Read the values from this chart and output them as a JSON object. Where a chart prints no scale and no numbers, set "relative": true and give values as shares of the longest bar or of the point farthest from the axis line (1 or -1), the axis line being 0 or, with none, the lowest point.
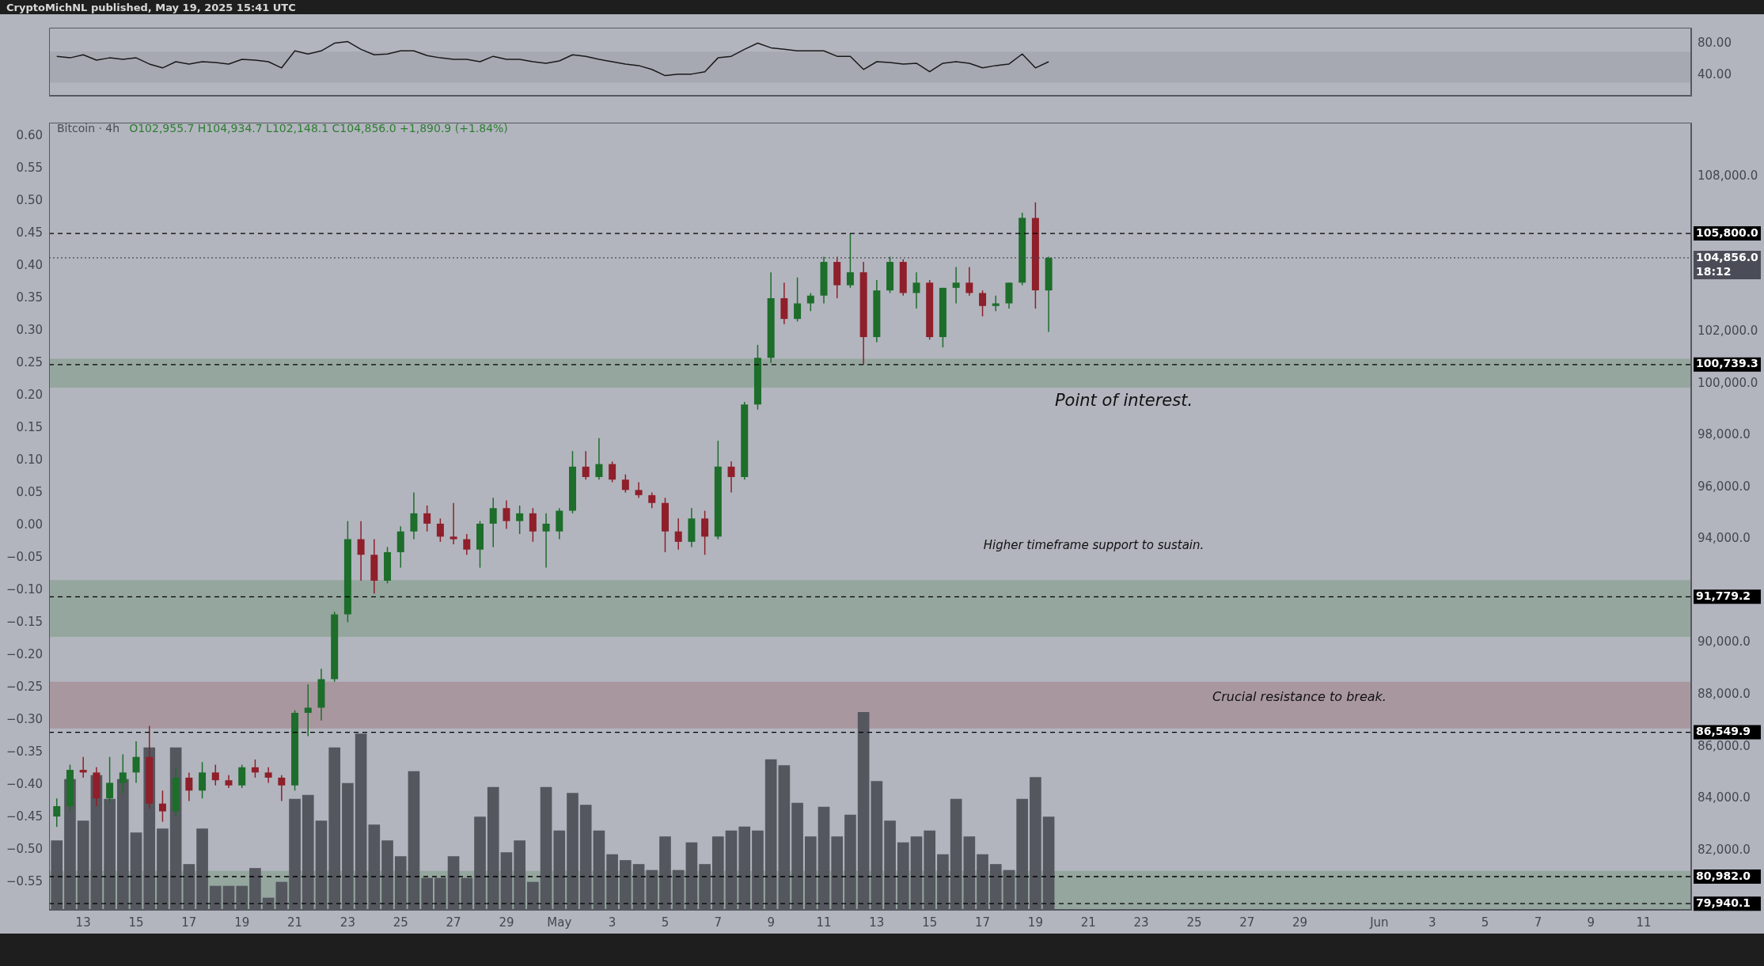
{
  "chart_data": [
    {
      "type": "line",
      "x": [
        "2025-04-12T00:00",
        "2025-04-12T12:00",
        "2025-04-13T00:00",
        "2025-04-13T12:00",
        "2025-04-14T00:00",
        "2025-04-14T12:00",
        "2025-04-15T00:00",
        "2025-04-15T12:00",
        "2025-04-16T00:00",
        "2025-04-16T12:00",
        "2025-04-17T00:00",
        "2025-04-17T12:00",
        "2025-04-18T00:00",
        "2025-04-18T12:00",
        "2025-04-19T00:00",
        "2025-04-19T12:00",
        "2025-04-20T00:00",
        "2025-04-20T12:00",
        "2025-04-21T00:00",
        "2025-04-21T12:00",
        "2025-04-22T00:00",
        "2025-04-22T12:00",
        "2025-04-23T00:00",
        "2025-04-23T12:00",
        "2025-04-24T00:00",
        "2025-04-24T12:00",
        "2025-04-25T00:00",
        "2025-04-25T12:00",
        "2025-04-26T00:00",
        "2025-04-26T12:00",
        "2025-04-27T00:00",
        "2025-04-27T12:00",
        "2025-04-28T00:00",
        "2025-04-28T12:00",
        "2025-04-29T00:00",
        "2025-04-29T12:00",
        "2025-04-30T00:00",
        "2025-04-30T12:00",
        "2025-05-01T00:00",
        "2025-05-01T12:00",
        "2025-05-02T00:00",
        "2025-05-02T12:00",
        "2025-05-03T00:00",
        "2025-05-03T12:00",
        "2025-05-04T00:00",
        "2025-05-04T12:00",
        "2025-05-05T00:00",
        "2025-05-05T12:00",
        "2025-05-06T00:00",
        "2025-05-06T12:00",
        "2025-05-07T00:00",
        "2025-05-07T12:00",
        "2025-05-08T00:00",
        "2025-05-08T12:00",
        "2025-05-09T00:00",
        "2025-05-09T12:00",
        "2025-05-10T00:00",
        "2025-05-10T12:00",
        "2025-05-11T00:00",
        "2025-05-11T12:00",
        "2025-05-12T00:00",
        "2025-05-12T12:00",
        "2025-05-13T00:00",
        "2025-05-13T12:00",
        "2025-05-14T00:00",
        "2025-05-14T12:00",
        "2025-05-15T00:00",
        "2025-05-15T12:00",
        "2025-05-16T00:00",
        "2025-05-16T12:00",
        "2025-05-17T00:00",
        "2025-05-17T12:00",
        "2025-05-18T00:00",
        "2025-05-18T12:00",
        "2025-05-19T00:00",
        "2025-05-19T12:00"
      ],
      "series": [
        {
          "color": "#1a1a1a",
          "values": [
            64,
            62,
            66,
            59,
            62,
            60,
            62,
            54,
            49,
            57,
            54,
            57,
            56,
            54,
            60,
            59,
            57,
            49,
            71,
            67,
            71,
            81,
            83,
            73,
            66,
            67,
            71,
            71,
            65,
            62,
            60,
            60,
            57,
            64,
            60,
            60,
            57,
            55,
            58,
            66,
            64,
            60,
            57,
            54,
            52,
            47,
            39,
            41,
            41,
            44,
            62,
            64,
            73,
            81,
            75,
            73,
            71,
            71,
            71,
            64,
            64,
            47,
            57,
            56,
            54,
            55,
            44,
            55,
            57,
            55,
            49,
            52,
            54,
            67,
            49,
            57
          ]
        }
      ],
      "xlim": [
        "2025-04-11T17:00",
        "2025-06-12T19:00"
      ],
      "ylim": [
        13,
        101
      ],
      "yticks": [
        {
          "value": 40,
          "label": "40.00"
        },
        {
          "value": 80,
          "label": "80.00"
        }
      ],
      "tick_labels": "y",
      "bands": [
        {
          "axis": "y",
          "from": 30,
          "to": 70,
          "color": "#a3a6ae"
        }
      ]
    },
    {
      "type": "candlestick",
      "title": "Bitcoin · 4h",
      "subtitle": "O102,955.7 H104,934.7 L102,148.1 C104,856.0 +1,890.9 (+1.84%)",
      "x": [
        "2025-04-12T00:00",
        "2025-04-12T12:00",
        "2025-04-13T00:00",
        "2025-04-13T12:00",
        "2025-04-14T00:00",
        "2025-04-14T12:00",
        "2025-04-15T00:00",
        "2025-04-15T12:00",
        "2025-04-16T00:00",
        "2025-04-16T12:00",
        "2025-04-17T00:00",
        "2025-04-17T12:00",
        "2025-04-18T00:00",
        "2025-04-18T12:00",
        "2025-04-19T00:00",
        "2025-04-19T12:00",
        "2025-04-20T00:00",
        "2025-04-20T12:00",
        "2025-04-21T00:00",
        "2025-04-21T12:00",
        "2025-04-22T00:00",
        "2025-04-22T12:00",
        "2025-04-23T00:00",
        "2025-04-23T12:00",
        "2025-04-24T00:00",
        "2025-04-24T12:00",
        "2025-04-25T00:00",
        "2025-04-25T12:00",
        "2025-04-26T00:00",
        "2025-04-26T12:00",
        "2025-04-27T00:00",
        "2025-04-27T12:00",
        "2025-04-28T00:00",
        "2025-04-28T12:00",
        "2025-04-29T00:00",
        "2025-04-29T12:00",
        "2025-04-30T00:00",
        "2025-04-30T12:00",
        "2025-05-01T00:00",
        "2025-05-01T12:00",
        "2025-05-02T00:00",
        "2025-05-02T12:00",
        "2025-05-03T00:00",
        "2025-05-03T12:00",
        "2025-05-04T00:00",
        "2025-05-04T12:00",
        "2025-05-05T00:00",
        "2025-05-05T12:00",
        "2025-05-06T00:00",
        "2025-05-06T12:00",
        "2025-05-07T00:00",
        "2025-05-07T12:00",
        "2025-05-08T00:00",
        "2025-05-08T12:00",
        "2025-05-09T00:00",
        "2025-05-09T12:00",
        "2025-05-10T00:00",
        "2025-05-10T12:00",
        "2025-05-11T00:00",
        "2025-05-11T12:00",
        "2025-05-12T00:00",
        "2025-05-12T12:00",
        "2025-05-13T00:00",
        "2025-05-13T12:00",
        "2025-05-14T00:00",
        "2025-05-14T12:00",
        "2025-05-15T00:00",
        "2025-05-15T12:00",
        "2025-05-16T00:00",
        "2025-05-16T12:00",
        "2025-05-17T00:00",
        "2025-05-17T12:00",
        "2025-05-18T00:00",
        "2025-05-18T12:00",
        "2025-05-19T00:00",
        "2025-05-19T12:00"
      ],
      "ohlc": [
        [
          83300,
          84000,
          82900,
          83700
        ],
        [
          83700,
          85300,
          83500,
          85100
        ],
        [
          85100,
          85600,
          84800,
          85000
        ],
        [
          85000,
          85200,
          83700,
          84000
        ],
        [
          84000,
          85600,
          83800,
          84600
        ],
        [
          84600,
          85700,
          84200,
          85000
        ],
        [
          85000,
          86200,
          84600,
          85600
        ],
        [
          85600,
          86800,
          83600,
          83800
        ],
        [
          83800,
          84300,
          83100,
          83500
        ],
        [
          83500,
          85200,
          83300,
          84800
        ],
        [
          84800,
          85000,
          83900,
          84300
        ],
        [
          84300,
          85400,
          84000,
          85000
        ],
        [
          85000,
          85300,
          84500,
          84700
        ],
        [
          84700,
          84900,
          84400,
          84500
        ],
        [
          84500,
          85300,
          84400,
          85200
        ],
        [
          85200,
          85500,
          84800,
          85000
        ],
        [
          85000,
          85200,
          84600,
          84800
        ],
        [
          84800,
          84900,
          83900,
          84500
        ],
        [
          84500,
          87400,
          84300,
          87300
        ],
        [
          87300,
          88400,
          86400,
          87500
        ],
        [
          87500,
          89000,
          87000,
          88600
        ],
        [
          88600,
          91200,
          88500,
          91100
        ],
        [
          91100,
          94700,
          90800,
          94000
        ],
        [
          94000,
          94700,
          92400,
          93400
        ],
        [
          93400,
          94000,
          91900,
          92400
        ],
        [
          92400,
          93700,
          92300,
          93500
        ],
        [
          93500,
          94500,
          92900,
          94300
        ],
        [
          94300,
          95800,
          94000,
          95000
        ],
        [
          95000,
          95300,
          94300,
          94600
        ],
        [
          94600,
          94800,
          93900,
          94100
        ],
        [
          94100,
          95400,
          93800,
          94000
        ],
        [
          94000,
          94200,
          93400,
          93600
        ],
        [
          93600,
          94700,
          92900,
          94600
        ],
        [
          94600,
          95600,
          93700,
          95200
        ],
        [
          95200,
          95500,
          94400,
          94700
        ],
        [
          94700,
          95300,
          94200,
          95000
        ],
        [
          95000,
          95200,
          93900,
          94300
        ],
        [
          94300,
          95000,
          92900,
          94600
        ],
        [
          94300,
          95200,
          94000,
          95100
        ],
        [
          95100,
          97400,
          95000,
          96800
        ],
        [
          96800,
          97400,
          96300,
          96400
        ],
        [
          96400,
          97900,
          96300,
          96900
        ],
        [
          96900,
          97000,
          96200,
          96300
        ],
        [
          96300,
          96500,
          95800,
          95900
        ],
        [
          95900,
          96200,
          95600,
          95700
        ],
        [
          95700,
          95800,
          95200,
          95400
        ],
        [
          95400,
          95600,
          93500,
          94300
        ],
        [
          94300,
          94800,
          93600,
          93900
        ],
        [
          93900,
          95200,
          93700,
          94800
        ],
        [
          94800,
          95100,
          93400,
          94100
        ],
        [
          94100,
          97800,
          94000,
          96800
        ],
        [
          96800,
          97000,
          95800,
          96400
        ],
        [
          96400,
          99300,
          96300,
          99200
        ],
        [
          99200,
          101500,
          99000,
          101000
        ],
        [
          101000,
          104300,
          100800,
          103300
        ],
        [
          103300,
          103900,
          102300,
          102500
        ],
        [
          102500,
          104100,
          102400,
          103100
        ],
        [
          103100,
          103500,
          102800,
          103400
        ],
        [
          103400,
          104900,
          103100,
          104700
        ],
        [
          104700,
          104900,
          103300,
          103800
        ],
        [
          103800,
          105800,
          103700,
          104300
        ],
        [
          104300,
          104700,
          100739.3,
          101800
        ],
        [
          101800,
          104000,
          101600,
          103600
        ],
        [
          103600,
          104900,
          103500,
          104700
        ],
        [
          104700,
          104800,
          103400,
          103500
        ],
        [
          103500,
          104300,
          102900,
          103900
        ],
        [
          103900,
          104000,
          101700,
          101800
        ],
        [
          101800,
          103700,
          101400,
          103700
        ],
        [
          103700,
          104500,
          103100,
          103900
        ],
        [
          103900,
          104500,
          103400,
          103500
        ],
        [
          103500,
          103600,
          102600,
          103000
        ],
        [
          103000,
          103400,
          102800,
          103100
        ],
        [
          103100,
          103900,
          102900,
          103900
        ],
        [
          103900,
          106600,
          103800,
          106400
        ],
        [
          106400,
          107000,
          102900,
          103600
        ],
        [
          103600,
          104900,
          102000,
          104856
        ]
      ],
      "colors": [
        "#1d6d2b",
        "#1d6d2b",
        "#8f1f2a",
        "#8f1f2a",
        "#1d6d2b",
        "#1d6d2b",
        "#1d6d2b",
        "#8f1f2a",
        "#8f1f2a",
        "#1d6d2b",
        "#8f1f2a",
        "#1d6d2b",
        "#8f1f2a",
        "#8f1f2a",
        "#1d6d2b",
        "#8f1f2a",
        "#8f1f2a",
        "#8f1f2a",
        "#1d6d2b",
        "#1d6d2b",
        "#1d6d2b",
        "#1d6d2b",
        "#1d6d2b",
        "#8f1f2a",
        "#8f1f2a",
        "#1d6d2b",
        "#1d6d2b",
        "#1d6d2b",
        "#8f1f2a",
        "#8f1f2a",
        "#8f1f2a",
        "#8f1f2a",
        "#1d6d2b",
        "#1d6d2b",
        "#8f1f2a",
        "#1d6d2b",
        "#8f1f2a",
        "#1d6d2b",
        "#1d6d2b",
        "#1d6d2b",
        "#8f1f2a",
        "#1d6d2b",
        "#8f1f2a",
        "#8f1f2a",
        "#8f1f2a",
        "#8f1f2a",
        "#8f1f2a",
        "#8f1f2a",
        "#1d6d2b",
        "#8f1f2a",
        "#1d6d2b",
        "#8f1f2a",
        "#1d6d2b",
        "#1d6d2b",
        "#1d6d2b",
        "#8f1f2a",
        "#1d6d2b",
        "#1d6d2b",
        "#1d6d2b",
        "#8f1f2a",
        "#1d6d2b",
        "#8f1f2a",
        "#1d6d2b",
        "#1d6d2b",
        "#8f1f2a",
        "#1d6d2b",
        "#8f1f2a",
        "#1d6d2b",
        "#1d6d2b",
        "#8f1f2a",
        "#8f1f2a",
        "#1d6d2b",
        "#1d6d2b",
        "#1d6d2b",
        "#8f1f2a",
        "#1d6d2b"
      ],
      "xlim": [
        "2025-04-11T17:00",
        "2025-06-12T19:00"
      ],
      "xticks": [
        {
          "value": "2025-04-13",
          "label": "13"
        },
        {
          "value": "2025-04-15",
          "label": "15"
        },
        {
          "value": "2025-04-17",
          "label": "17"
        },
        {
          "value": "2025-04-19",
          "label": "19"
        },
        {
          "value": "2025-04-21",
          "label": "21"
        },
        {
          "value": "2025-04-23",
          "label": "23"
        },
        {
          "value": "2025-04-25",
          "label": "25"
        },
        {
          "value": "2025-04-27",
          "label": "27"
        },
        {
          "value": "2025-04-29",
          "label": "29"
        },
        {
          "value": "2025-05-01",
          "label": "May"
        },
        {
          "value": "2025-05-03",
          "label": "3"
        },
        {
          "value": "2025-05-05",
          "label": "5"
        },
        {
          "value": "2025-05-07",
          "label": "7"
        },
        {
          "value": "2025-05-09",
          "label": "9"
        },
        {
          "value": "2025-05-11",
          "label": "11"
        },
        {
          "value": "2025-05-13",
          "label": "13"
        },
        {
          "value": "2025-05-15",
          "label": "15"
        },
        {
          "value": "2025-05-17",
          "label": "17"
        },
        {
          "value": "2025-05-19",
          "label": "19"
        },
        {
          "value": "2025-05-21",
          "label": "21"
        },
        {
          "value": "2025-05-23",
          "label": "23"
        },
        {
          "value": "2025-05-25",
          "label": "25"
        },
        {
          "value": "2025-05-27",
          "label": "27"
        },
        {
          "value": "2025-05-29",
          "label": "29"
        },
        {
          "value": "2025-06-01",
          "label": "Jun"
        },
        {
          "value": "2025-06-03",
          "label": "3"
        },
        {
          "value": "2025-06-05",
          "label": "5"
        },
        {
          "value": "2025-06-07",
          "label": "7"
        },
        {
          "value": "2025-06-09",
          "label": "9"
        },
        {
          "value": "2025-06-11",
          "label": "11"
        }
      ],
      "ylim": [
        79700,
        110075
      ],
      "yticks": [
        {
          "value": 82000,
          "label": "82,000.0"
        },
        {
          "value": 84000,
          "label": "84,000.0"
        },
        {
          "value": 86000,
          "label": "86,000.0"
        },
        {
          "value": 88000,
          "label": "88,000.0"
        },
        {
          "value": 90000,
          "label": "90,000.0"
        },
        {
          "value": 94000,
          "label": "94,000.0"
        },
        {
          "value": 96000,
          "label": "96,000.0"
        },
        {
          "value": 98000,
          "label": "98,000.0"
        },
        {
          "value": 100000,
          "label": "100,000.0"
        },
        {
          "value": 102000,
          "label": "102,000.0"
        },
        {
          "value": 108000,
          "label": "108,000.0"
        }
      ],
      "y2lim": [
        -0.593,
        0.621
      ],
      "y2ticks": [
        {
          "value": -0.55,
          "label": "−0.55"
        },
        {
          "value": -0.5,
          "label": "−0.50"
        },
        {
          "value": -0.45,
          "label": "−0.45"
        },
        {
          "value": -0.4,
          "label": "−0.40"
        },
        {
          "value": -0.35,
          "label": "−0.35"
        },
        {
          "value": -0.3,
          "label": "−0.30"
        },
        {
          "value": -0.25,
          "label": "−0.25"
        },
        {
          "value": -0.2,
          "label": "−0.20"
        },
        {
          "value": -0.15,
          "label": "−0.15"
        },
        {
          "value": -0.1,
          "label": "−0.10"
        },
        {
          "value": -0.05,
          "label": "−0.05"
        },
        {
          "value": 0,
          "label": "0.00"
        },
        {
          "value": 0.05,
          "label": "0.05"
        },
        {
          "value": 0.1,
          "label": "0.10"
        },
        {
          "value": 0.15,
          "label": "0.15"
        },
        {
          "value": 0.2,
          "label": "0.20"
        },
        {
          "value": 0.25,
          "label": "0.25"
        },
        {
          "value": 0.3,
          "label": "0.30"
        },
        {
          "value": 0.35,
          "label": "0.35"
        },
        {
          "value": 0.4,
          "label": "0.40"
        },
        {
          "value": 0.45,
          "label": "0.45"
        },
        {
          "value": 0.5,
          "label": "0.50"
        },
        {
          "value": 0.55,
          "label": "0.55"
        },
        {
          "value": 0.6,
          "label": "0.60"
        }
      ],
      "bands": [
        {
          "axis": "y",
          "from": 86700,
          "to": 88500,
          "color": "#a68d96"
        },
        {
          "axis": "y",
          "from": 90230,
          "to": 92420,
          "color": "#8ba293"
        },
        {
          "axis": "y",
          "from": 99850,
          "to": 100960,
          "color": "#8ba293"
        },
        {
          "axis": "y",
          "from": 79700,
          "to": 81200,
          "color": "#8ba293"
        }
      ],
      "ref_lines": [
        {
          "axis": "y",
          "value": 105800,
          "label": "105,800.0",
          "color": "#000000",
          "line_style": "dashed"
        },
        {
          "axis": "y",
          "value": 104856,
          "label": "104,856.0\n18:12",
          "color": "#4a4d57",
          "line_style": "dotted"
        },
        {
          "axis": "y",
          "value": 100739.3,
          "label": "100,739.3",
          "color": "#000000",
          "line_style": "dashed"
        },
        {
          "axis": "y",
          "value": 91779.2,
          "label": "91,779.2",
          "color": "#000000",
          "line_style": "dashed"
        },
        {
          "axis": "y",
          "value": 86549.9,
          "label": "86,549.9",
          "color": "#000000",
          "line_style": "dashed"
        },
        {
          "axis": "y",
          "value": 80982.0,
          "label": "80,982.0",
          "color": "#000000",
          "line_style": "dashed"
        },
        {
          "axis": "y",
          "value": 79940.1,
          "label": "79,940.1",
          "color": "#000000",
          "line_style": "dashed"
        }
      ],
      "annotations": [
        "CryptoMichNL published, May 19, 2025 15:41 UTC",
        "Point of interest.",
        "Higher timeframe support to sustain.",
        "Crucial resistance to break."
      ]
    },
    {
      "type": "bar",
      "relative": true,
      "color": "#55575e",
      "tick_labels": false,
      "x": [
        "2025-04-12T00:00",
        "2025-04-12T12:00",
        "2025-04-13T00:00",
        "2025-04-13T12:00",
        "2025-04-14T00:00",
        "2025-04-14T12:00",
        "2025-04-15T00:00",
        "2025-04-15T12:00",
        "2025-04-16T00:00",
        "2025-04-16T12:00",
        "2025-04-17T00:00",
        "2025-04-17T12:00",
        "2025-04-18T00:00",
        "2025-04-18T12:00",
        "2025-04-19T00:00",
        "2025-04-19T12:00",
        "2025-04-20T00:00",
        "2025-04-20T12:00",
        "2025-04-21T00:00",
        "2025-04-21T12:00",
        "2025-04-22T00:00",
        "2025-04-22T12:00",
        "2025-04-23T00:00",
        "2025-04-23T12:00",
        "2025-04-24T00:00",
        "2025-04-24T12:00",
        "2025-04-25T00:00",
        "2025-04-25T12:00",
        "2025-04-26T00:00",
        "2025-04-26T12:00",
        "2025-04-27T00:00",
        "2025-04-27T12:00",
        "2025-04-28T00:00",
        "2025-04-28T12:00",
        "2025-04-29T00:00",
        "2025-04-29T12:00",
        "2025-04-30T00:00",
        "2025-04-30T12:00",
        "2025-05-01T00:00",
        "2025-05-01T12:00",
        "2025-05-02T00:00",
        "2025-05-02T12:00",
        "2025-05-03T00:00",
        "2025-05-03T12:00",
        "2025-05-04T00:00",
        "2025-05-04T12:00",
        "2025-05-05T00:00",
        "2025-05-05T12:00",
        "2025-05-06T00:00",
        "2025-05-06T12:00",
        "2025-05-07T00:00",
        "2025-05-07T12:00",
        "2025-05-08T00:00",
        "2025-05-08T12:00",
        "2025-05-09T00:00",
        "2025-05-09T12:00",
        "2025-05-10T00:00",
        "2025-05-10T12:00",
        "2025-05-11T00:00",
        "2025-05-11T12:00",
        "2025-05-12T00:00",
        "2025-05-12T12:00",
        "2025-05-13T00:00",
        "2025-05-13T12:00",
        "2025-05-14T00:00",
        "2025-05-14T12:00",
        "2025-05-15T00:00",
        "2025-05-15T12:00",
        "2025-05-16T00:00",
        "2025-05-16T12:00",
        "2025-05-17T00:00",
        "2025-05-17T12:00",
        "2025-05-18T00:00",
        "2025-05-18T12:00",
        "2025-05-19T00:00",
        "2025-05-19T12:00"
      ],
      "xlim": [
        "2025-04-11T17:00",
        "2025-06-12T19:00"
      ],
      "values": [
        0.35,
        0.66,
        0.45,
        0.68,
        0.56,
        0.66,
        0.39,
        0.82,
        0.41,
        0.82,
        0.23,
        0.41,
        0.12,
        0.12,
        0.12,
        0.21,
        0.06,
        0.14,
        0.56,
        0.58,
        0.45,
        0.82,
        0.64,
        0.89,
        0.43,
        0.35,
        0.27,
        0.7,
        0.16,
        0.16,
        0.27,
        0.16,
        0.47,
        0.62,
        0.29,
        0.35,
        0.14,
        0.62,
        0.4,
        0.59,
        0.53,
        0.4,
        0.28,
        0.25,
        0.23,
        0.2,
        0.37,
        0.2,
        0.34,
        0.23,
        0.37,
        0.4,
        0.42,
        0.4,
        0.76,
        0.73,
        0.54,
        0.37,
        0.52,
        0.37,
        0.48,
        1,
        0.65,
        0.45,
        0.34,
        0.37,
        0.4,
        0.28,
        0.56,
        0.37,
        0.28,
        0.23,
        0.2,
        0.56,
        0.67,
        0.47
      ]
    }
  ]
}
